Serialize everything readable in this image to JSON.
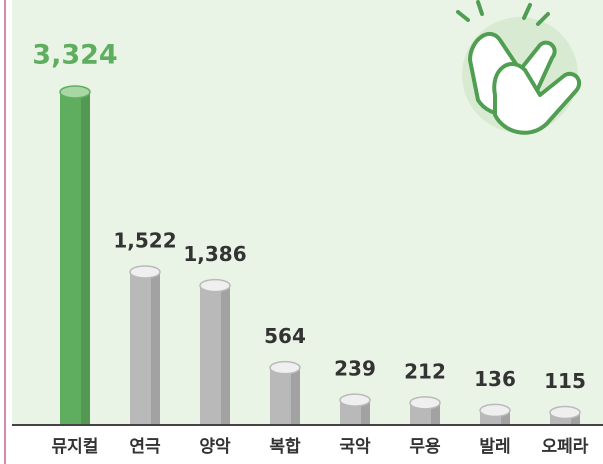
{
  "chart_data": {
    "type": "bar",
    "categories": [
      "뮤지컬",
      "연극",
      "양악",
      "복합",
      "국악",
      "무용",
      "발레",
      "오페라"
    ],
    "values": [
      3324,
      1522,
      1386,
      564,
      239,
      212,
      136,
      115
    ],
    "value_labels": [
      "3,324",
      "1,522",
      "1,386",
      "564",
      "239",
      "212",
      "136",
      "115"
    ],
    "colors": [
      "#5fae5f",
      "#b9b9b9",
      "#b9b9b9",
      "#b9b9b9",
      "#b9b9b9",
      "#b9b9b9",
      "#b9b9b9",
      "#b9b9b9"
    ],
    "value_label_colors": [
      "#5fae5f",
      "#333333",
      "#333333",
      "#333333",
      "#333333",
      "#333333",
      "#333333",
      "#333333"
    ]
  }
}
